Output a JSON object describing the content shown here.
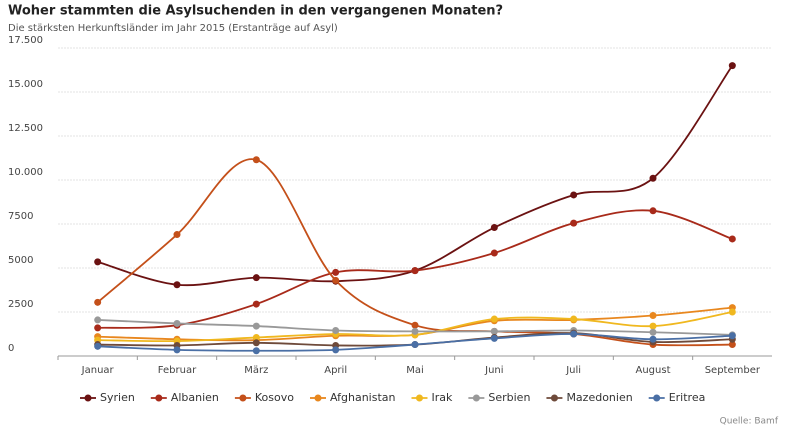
{
  "chart_data": {
    "type": "line",
    "title": "Woher stammten die Asylsuchenden in den vergangenen Monaten?",
    "subtitle": "Die stärksten Herkunftsländer im Jahr 2015 (Erstanträge auf Asyl)",
    "source": "Quelle: Bamf",
    "categories": [
      "Januar",
      "Februar",
      "März",
      "April",
      "Mai",
      "Juni",
      "Juli",
      "August",
      "September"
    ],
    "ylim": [
      0,
      17500
    ],
    "yticks": [
      0,
      2500,
      5000,
      7500,
      {
        "value": 10000,
        "label": "10.000"
      },
      {
        "value": 12500,
        "label": "12.500"
      },
      {
        "value": 15000,
        "label": "15.000"
      },
      {
        "value": 17500,
        "label": "17.500"
      }
    ],
    "grid": true,
    "legend": "bottom",
    "series": [
      {
        "name": "Syrien",
        "color": "#6b1212",
        "values": [
          5350,
          4050,
          4450,
          4250,
          4850,
          7300,
          9150,
          10100,
          16500
        ]
      },
      {
        "name": "Albanien",
        "color": "#a82a1a",
        "values": [
          1600,
          1750,
          2950,
          4750,
          4850,
          5850,
          7550,
          8250,
          6650
        ]
      },
      {
        "name": "Kosovo",
        "color": "#c4501a",
        "values": [
          3050,
          6900,
          11150,
          4300,
          1750,
          1400,
          1250,
          650,
          650
        ]
      },
      {
        "name": "Afghanistan",
        "color": "#e8871e",
        "values": [
          1100,
          950,
          900,
          1150,
          1200,
          2000,
          2050,
          2300,
          2750
        ]
      },
      {
        "name": "Irak",
        "color": "#f0b81f",
        "values": [
          900,
          850,
          1050,
          1250,
          1200,
          2100,
          2100,
          1700,
          2500
        ]
      },
      {
        "name": "Serbien",
        "color": "#999999",
        "values": [
          2050,
          1850,
          1700,
          1450,
          1400,
          1400,
          1450,
          1350,
          1200
        ]
      },
      {
        "name": "Mazedonien",
        "color": "#6e4a3a",
        "values": [
          650,
          600,
          750,
          600,
          650,
          1050,
          1300,
          800,
          950
        ]
      },
      {
        "name": "Eritrea",
        "color": "#4a6fa5",
        "values": [
          550,
          350,
          300,
          350,
          650,
          1000,
          1250,
          950,
          1150
        ]
      }
    ]
  }
}
